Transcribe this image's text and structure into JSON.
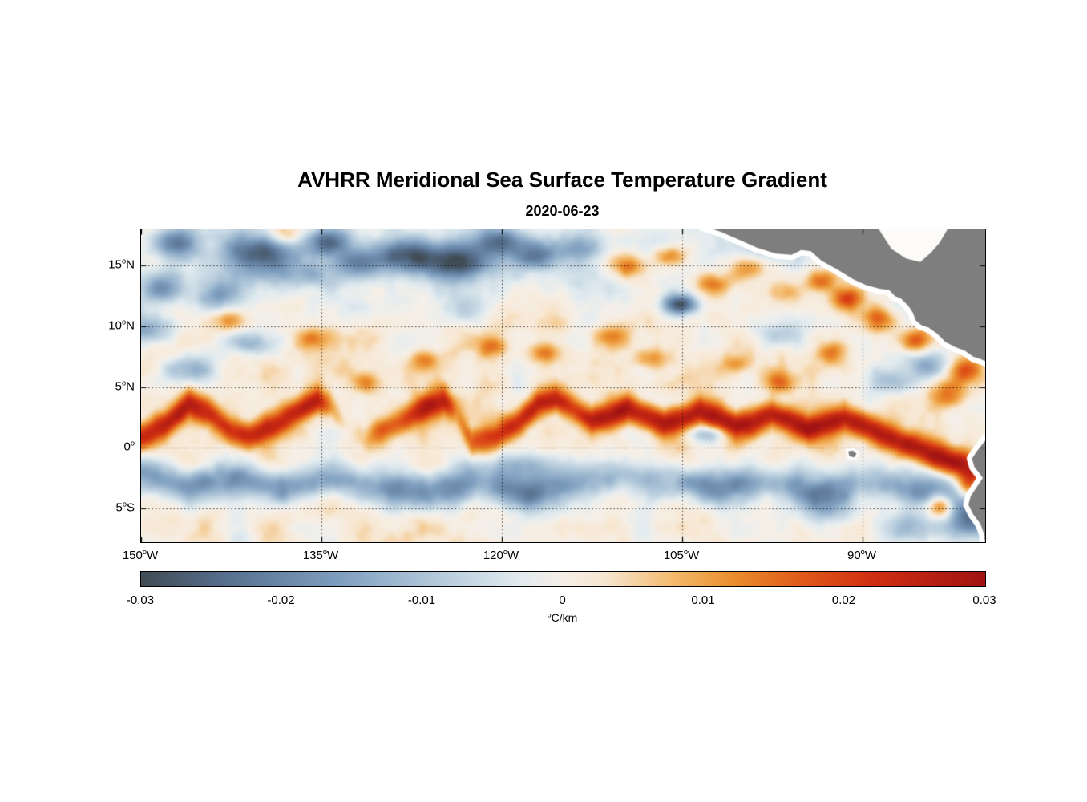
{
  "chart_data": {
    "type": "heatmap",
    "title": "AVHRR Meridional Sea Surface Temperature Gradient",
    "date": "2020-06-23",
    "deg_char": "o",
    "extent": {
      "lon_min": -150,
      "lon_max": -79.8,
      "lat_min": -7.8,
      "lat_max": 18.0
    },
    "x_axis": {
      "ticks": [
        {
          "lon": -150,
          "num": "150",
          "suffix": "W"
        },
        {
          "lon": -135,
          "num": "135",
          "suffix": "W"
        },
        {
          "lon": -120,
          "num": "120",
          "suffix": "W"
        },
        {
          "lon": -105,
          "num": "105",
          "suffix": "W"
        },
        {
          "lon": -90,
          "num": "90",
          "suffix": "W"
        }
      ]
    },
    "y_axis": {
      "ticks": [
        {
          "lat": 15,
          "num": "15",
          "suffix": "N"
        },
        {
          "lat": 10,
          "num": "10",
          "suffix": "N"
        },
        {
          "lat": 5,
          "num": "5",
          "suffix": "N"
        },
        {
          "lat": 0,
          "num": "0",
          "suffix": ""
        },
        {
          "lat": -5,
          "num": "5",
          "suffix": "S"
        }
      ]
    },
    "grid": {
      "style": "dotted",
      "color": "#000000"
    },
    "colorbar": {
      "min": -0.03,
      "max": 0.03,
      "tick_labels": [
        "-0.03",
        "-0.02",
        "-0.01",
        "0",
        "0.01",
        "0.02",
        "0.03"
      ],
      "unit_sup": "o",
      "unit_text": "C/km"
    },
    "colormap": [
      [
        -0.03,
        "#414c55"
      ],
      [
        -0.024,
        "#57708f"
      ],
      [
        -0.016,
        "#7f9fc0"
      ],
      [
        -0.009,
        "#b4cadb"
      ],
      [
        -0.003,
        "#e3ecf0"
      ],
      [
        0.0,
        "#f6efe7"
      ],
      [
        0.003,
        "#f7e7d2"
      ],
      [
        0.008,
        "#f3b96a"
      ],
      [
        0.012,
        "#ea8f2e"
      ],
      [
        0.017,
        "#e05a1a"
      ],
      [
        0.022,
        "#d02f12"
      ],
      [
        0.03,
        "#a01313"
      ]
    ],
    "field": {
      "noise": {
        "seed": 11,
        "amplitude": 0.0065,
        "octaves": [
          {
            "scale": 2.6,
            "amp": 1.0
          },
          {
            "scale": 1.3,
            "amp": 0.55
          },
          {
            "scale": 0.65,
            "amp": 0.3
          }
        ]
      },
      "bias_base": 0.0015,
      "bias_north": 0.004,
      "bands": [
        {
          "name": "equatorial-front",
          "width": 0.8,
          "points": [
            [
              -150,
              0.8,
              0.022
            ],
            [
              -148,
              1.8,
              0.024
            ],
            [
              -146,
              3.6,
              0.024
            ],
            [
              -144.5,
              3.0,
              0.02
            ],
            [
              -142.5,
              1.4,
              0.02
            ],
            [
              -141,
              0.9,
              0.022
            ],
            [
              -139,
              1.8,
              0.022
            ],
            [
              -137,
              3.0,
              0.024
            ],
            [
              -135.3,
              3.9,
              0.026
            ],
            [
              -134.2,
              3.4,
              0.012
            ],
            [
              -133,
              1.8,
              0.004
            ],
            [
              -131.5,
              0.8,
              0.006
            ],
            [
              -130,
              1.4,
              0.018
            ],
            [
              -128,
              2.4,
              0.022
            ],
            [
              -126,
              3.4,
              0.024
            ],
            [
              -124.8,
              3.9,
              0.022
            ],
            [
              -123.8,
              2.8,
              0.008
            ],
            [
              -122.5,
              0.4,
              0.014
            ],
            [
              -120.5,
              0.9,
              0.02
            ],
            [
              -118.5,
              2.2,
              0.024
            ],
            [
              -117,
              3.6,
              0.026
            ],
            [
              -115.5,
              4.0,
              0.024
            ],
            [
              -114,
              3.2,
              0.022
            ],
            [
              -112.5,
              2.2,
              0.026
            ],
            [
              -111,
              2.6,
              0.026
            ],
            [
              -109.5,
              3.2,
              0.026
            ],
            [
              -108,
              2.6,
              0.028
            ],
            [
              -106.5,
              2.0,
              0.028
            ],
            [
              -105,
              2.4,
              0.026
            ],
            [
              -103.5,
              3.0,
              0.026
            ],
            [
              -102,
              2.4,
              0.026
            ],
            [
              -100.5,
              1.8,
              0.028
            ],
            [
              -99,
              2.2,
              0.026
            ],
            [
              -97.5,
              2.8,
              0.026
            ],
            [
              -96,
              2.2,
              0.026
            ],
            [
              -94.5,
              1.6,
              0.028
            ],
            [
              -93,
              2.0,
              0.026
            ],
            [
              -91.5,
              2.4,
              0.026
            ],
            [
              -90,
              1.8,
              0.026
            ],
            [
              -88.5,
              1.1,
              0.028
            ],
            [
              -87,
              0.5,
              0.026
            ],
            [
              -85.5,
              0.0,
              0.026
            ],
            [
              -84,
              -0.7,
              0.028
            ],
            [
              -82.5,
              -1.1,
              0.028
            ],
            [
              -81,
              -1.5,
              0.026
            ],
            [
              -79.8,
              -1.8,
              0.024
            ]
          ]
        },
        {
          "name": "south-equatorial-cold-band",
          "width": 1.0,
          "points": [
            [
              -150,
              -2.2,
              -0.016
            ],
            [
              -146,
              -3.2,
              -0.02
            ],
            [
              -142,
              -2.6,
              -0.016
            ],
            [
              -138,
              -3.4,
              -0.02
            ],
            [
              -134,
              -2.6,
              -0.014
            ],
            [
              -130,
              -3.2,
              -0.018
            ],
            [
              -126,
              -3.8,
              -0.02
            ],
            [
              -122,
              -2.8,
              -0.016
            ],
            [
              -118,
              -3.8,
              -0.022
            ],
            [
              -114,
              -3.0,
              -0.014
            ],
            [
              -110,
              -2.2,
              -0.012
            ],
            [
              -106,
              -2.8,
              -0.016
            ],
            [
              -102,
              -3.4,
              -0.02
            ],
            [
              -98,
              -2.8,
              -0.016
            ],
            [
              -94,
              -3.6,
              -0.018
            ],
            [
              -90,
              -3.0,
              -0.014
            ],
            [
              -86,
              -3.4,
              -0.016
            ],
            [
              -82,
              -4.2,
              -0.018
            ],
            [
              -80,
              -4.8,
              -0.016
            ]
          ]
        }
      ],
      "blobs": [
        [
          -149.5,
          9.8,
          -0.018,
          1.6,
          0.9
        ],
        [
          -148.5,
          13,
          -0.016,
          1.2,
          0.8
        ],
        [
          -147,
          16.8,
          -0.02,
          1.5,
          0.9
        ],
        [
          -143.5,
          12.6,
          -0.013,
          1.4,
          0.8
        ],
        [
          -140,
          16,
          -0.024,
          2.2,
          1.1
        ],
        [
          -136.5,
          14.2,
          -0.012,
          1.3,
          0.8
        ],
        [
          -134.5,
          17,
          -0.02,
          1.4,
          0.8
        ],
        [
          -132,
          15,
          -0.016,
          1.3,
          0.9
        ],
        [
          -128,
          15.8,
          -0.025,
          2.0,
          1.0
        ],
        [
          -123.5,
          15.3,
          -0.025,
          2.0,
          1.0
        ],
        [
          -120,
          17,
          -0.022,
          1.4,
          0.8
        ],
        [
          -117.5,
          15.8,
          -0.018,
          1.3,
          0.8
        ],
        [
          -113.5,
          16.5,
          -0.014,
          1.5,
          0.8
        ],
        [
          -105.2,
          11.8,
          -0.026,
          1.0,
          0.55
        ],
        [
          -97.7,
          17,
          -0.013,
          1.2,
          0.8
        ],
        [
          -146,
          6.5,
          -0.011,
          1.8,
          0.8
        ],
        [
          -141,
          8.6,
          -0.011,
          1.6,
          0.7
        ],
        [
          -123,
          11.5,
          -0.009,
          1.5,
          0.8
        ],
        [
          -84.5,
          7.0,
          -0.014,
          1.3,
          0.9
        ],
        [
          -88,
          5.5,
          -0.01,
          1.5,
          0.8
        ],
        [
          -118.5,
          -1.5,
          -0.013,
          2.4,
          0.8
        ],
        [
          -93,
          -4.8,
          -0.013,
          2.0,
          1.0
        ],
        [
          -81,
          -6.2,
          -0.018,
          1.4,
          1.0
        ],
        [
          -86,
          -6.5,
          -0.012,
          1.8,
          0.9
        ],
        [
          -103,
          1.1,
          -0.012,
          1.2,
          0.5
        ],
        [
          -97,
          9.5,
          -0.009,
          1.5,
          0.8
        ],
        [
          -138,
          17.5,
          0.013,
          1.2,
          0.7
        ],
        [
          -109.5,
          15,
          0.015,
          1.1,
          0.7
        ],
        [
          -106,
          15.8,
          0.013,
          1.0,
          0.6
        ],
        [
          -102.5,
          13.5,
          0.015,
          1.1,
          0.7
        ],
        [
          -99.5,
          14.8,
          0.013,
          1.0,
          0.7
        ],
        [
          -96,
          12.8,
          0.012,
          1.1,
          0.7
        ],
        [
          -93.5,
          13.8,
          0.017,
          1.0,
          0.7
        ],
        [
          -91.3,
          12.3,
          0.02,
          0.9,
          0.7
        ],
        [
          -88.5,
          10.5,
          0.015,
          1.0,
          0.7
        ],
        [
          -85.7,
          8.8,
          0.017,
          0.9,
          0.7
        ],
        [
          -81.5,
          6.5,
          0.015,
          1.0,
          0.8
        ],
        [
          -82.8,
          4.5,
          0.013,
          1.1,
          0.8
        ],
        [
          -83.5,
          -4.8,
          0.023,
          0.8,
          0.7
        ],
        [
          -81.3,
          -3.4,
          0.02,
          0.7,
          0.8
        ],
        [
          -120.8,
          8.4,
          0.013,
          0.9,
          0.6
        ],
        [
          -116.5,
          7.8,
          0.011,
          0.9,
          0.6
        ],
        [
          -126.5,
          7.2,
          0.012,
          0.9,
          0.6
        ],
        [
          -131.3,
          5.4,
          0.011,
          0.8,
          0.6
        ],
        [
          -107.5,
          7.3,
          0.011,
          0.9,
          0.6
        ],
        [
          -100.5,
          6.8,
          0.011,
          0.9,
          0.6
        ],
        [
          -97,
          5.4,
          0.012,
          0.9,
          0.6
        ],
        [
          -111,
          9.2,
          0.011,
          0.9,
          0.6
        ],
        [
          -92.5,
          7.8,
          0.012,
          1.0,
          0.7
        ],
        [
          -136,
          9.0,
          0.01,
          1.0,
          0.6
        ],
        [
          -143,
          10.5,
          0.01,
          1.0,
          0.6
        ]
      ]
    },
    "land": {
      "color": "#7e7e7e",
      "halo": "#ffffff",
      "masses": [
        {
          "name": "central-america",
          "halo": 13,
          "coast": [
            [
              -103.3,
              18.3
            ],
            [
              -101.8,
              17.8
            ],
            [
              -100.4,
              17.2
            ],
            [
              -98.8,
              16.5
            ],
            [
              -97.2,
              16.0
            ],
            [
              -95.9,
              15.9
            ],
            [
              -95.1,
              16.3
            ],
            [
              -94.3,
              16.2
            ],
            [
              -93.4,
              15.4
            ],
            [
              -92.1,
              14.7
            ],
            [
              -90.8,
              13.9
            ],
            [
              -89.7,
              13.4
            ],
            [
              -88.6,
              13.1
            ],
            [
              -87.8,
              13.0
            ],
            [
              -87.3,
              12.5
            ],
            [
              -86.8,
              12.3
            ],
            [
              -86.2,
              11.7
            ],
            [
              -85.8,
              11.1
            ],
            [
              -85.6,
              10.5
            ],
            [
              -85.1,
              10.1
            ],
            [
              -84.5,
              9.9
            ],
            [
              -83.8,
              9.4
            ],
            [
              -83.1,
              8.7
            ],
            [
              -82.3,
              8.3
            ],
            [
              -81.5,
              8.0
            ],
            [
              -80.8,
              7.5
            ],
            [
              -80.2,
              7.3
            ],
            [
              -79.7,
              7.1
            ]
          ],
          "close": [
            [
              -79.6,
              18.4
            ]
          ]
        },
        {
          "name": "caribbean-water",
          "halo": 0,
          "fill": "#fcfbf7",
          "coast": [
            [
              -88.9,
              18.4
            ],
            [
              -82.7,
              18.4
            ],
            [
              -83.6,
              16.9
            ],
            [
              -84.3,
              16.1
            ],
            [
              -85.2,
              15.3
            ],
            [
              -86.4,
              15.6
            ],
            [
              -87.6,
              16.4
            ]
          ],
          "close": []
        },
        {
          "name": "south-america",
          "halo": 13,
          "coast": [
            [
              -79.7,
              0.7
            ],
            [
              -80.1,
              0.2
            ],
            [
              -80.5,
              -0.3
            ],
            [
              -80.9,
              -0.9
            ],
            [
              -80.7,
              -1.6
            ],
            [
              -80.3,
              -2.1
            ],
            [
              -80.0,
              -2.5
            ],
            [
              -80.4,
              -3.1
            ],
            [
              -81.0,
              -4.0
            ],
            [
              -81.2,
              -4.7
            ],
            [
              -80.8,
              -5.5
            ],
            [
              -80.2,
              -6.3
            ],
            [
              -79.9,
              -7.1
            ],
            [
              -79.8,
              -8.0
            ]
          ],
          "close": [
            [
              -79.6,
              -8.0
            ]
          ]
        },
        {
          "name": "galapagos-islands",
          "halo": 7,
          "coast": [
            [
              -91.2,
              -0.3
            ],
            [
              -90.8,
              -0.25
            ],
            [
              -90.5,
              -0.5
            ],
            [
              -90.7,
              -0.8
            ],
            [
              -91.1,
              -0.7
            ]
          ],
          "close": []
        }
      ]
    }
  }
}
